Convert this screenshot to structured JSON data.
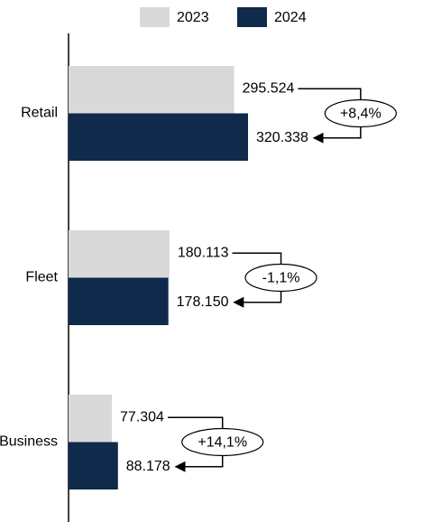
{
  "chart_data": {
    "type": "hbar",
    "categories": [
      "Retail",
      "Fleet",
      "Business"
    ],
    "series": [
      {
        "name": "2023",
        "color": "#d9d9d9",
        "values": [
          295524,
          180113,
          77304
        ],
        "value_labels": [
          "295.524",
          "180.113",
          "77.304"
        ]
      },
      {
        "name": "2024",
        "color": "#0f2a4a",
        "values": [
          320338,
          178150,
          88178
        ],
        "value_labels": [
          "320.338",
          "178.150",
          "88.178"
        ]
      }
    ],
    "annotations": [
      "+8,4%",
      "-1,1%",
      "+14,1%"
    ],
    "annotation_colors": [
      "#23877a",
      "#b0332a",
      "#23877a"
    ],
    "legend": "top"
  }
}
